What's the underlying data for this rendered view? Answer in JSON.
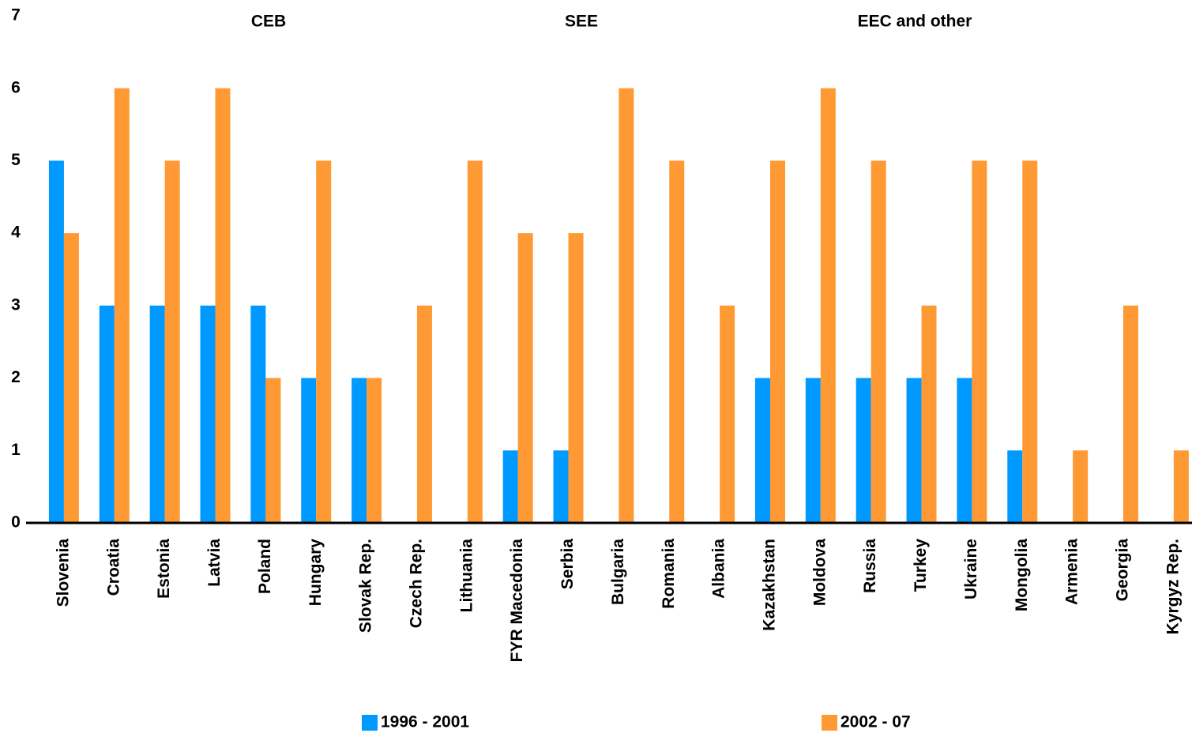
{
  "chart_data": {
    "type": "bar",
    "annotations": [
      "CEB",
      "SEE",
      "EEC and other"
    ],
    "categories": [
      "Slovenia",
      "Croatia",
      "Estonia",
      "Latvia",
      "Poland",
      "Hungary",
      "Slovak Rep.",
      "Czech Rep.",
      "Lithuania",
      "FYR Macedonia",
      "Serbia",
      "Bulgaria",
      "Romania",
      "Albania",
      "Kazakhstan",
      "Moldova",
      "Russia",
      "Turkey",
      "Ukraine",
      "Mongolia",
      "Armenia",
      "Georgia",
      "Kyrgyz Rep."
    ],
    "series": [
      {
        "name": "1996 - 2001",
        "color": "#0099ff",
        "values": [
          5,
          3,
          3,
          3,
          3,
          2,
          2,
          0,
          0,
          1,
          1,
          0,
          0,
          0,
          2,
          2,
          2,
          2,
          2,
          1,
          0,
          0,
          0
        ]
      },
      {
        "name": "2002 - 07",
        "color": "#ff9933",
        "values": [
          4,
          6,
          5,
          6,
          2,
          5,
          2,
          3,
          5,
          4,
          4,
          6,
          5,
          3,
          5,
          6,
          5,
          3,
          5,
          5,
          1,
          3,
          1
        ]
      }
    ],
    "ylim": [
      0,
      7
    ],
    "yticks": [
      0,
      1,
      2,
      3,
      4,
      5,
      6,
      7
    ],
    "grid": false
  }
}
